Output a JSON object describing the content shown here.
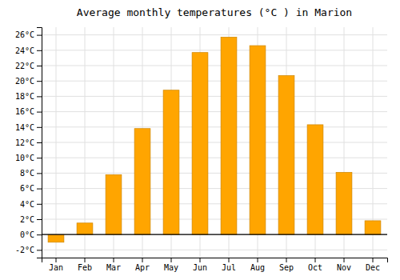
{
  "chart_data": {
    "type": "bar",
    "title": "Average monthly temperatures (°C ) in Marion",
    "categories": [
      "Jan",
      "Feb",
      "Mar",
      "Apr",
      "May",
      "Jun",
      "Jul",
      "Aug",
      "Sep",
      "Oct",
      "Nov",
      "Dec"
    ],
    "values": [
      -1.0,
      1.5,
      7.8,
      13.8,
      18.8,
      23.7,
      25.7,
      24.6,
      20.7,
      14.3,
      8.1,
      1.8
    ],
    "color": "#FFA500",
    "ylim": [
      -3,
      27
    ],
    "yticks": [
      {
        "value": -2,
        "label": "-2°C"
      },
      {
        "value": 0,
        "label": "0°C"
      },
      {
        "value": 2,
        "label": "2°C"
      },
      {
        "value": 4,
        "label": "4°C"
      },
      {
        "value": 6,
        "label": "6°C"
      },
      {
        "value": 8,
        "label": "8°C"
      },
      {
        "value": 10,
        "label": "10°C"
      },
      {
        "value": 12,
        "label": "12°C"
      },
      {
        "value": 14,
        "label": "14°C"
      },
      {
        "value": 16,
        "label": "16°C"
      },
      {
        "value": 18,
        "label": "18°C"
      },
      {
        "value": 20,
        "label": "20°C"
      },
      {
        "value": 22,
        "label": "22°C"
      },
      {
        "value": 24,
        "label": "24°C"
      },
      {
        "value": 26,
        "label": "26°C"
      }
    ],
    "grid": true
  }
}
